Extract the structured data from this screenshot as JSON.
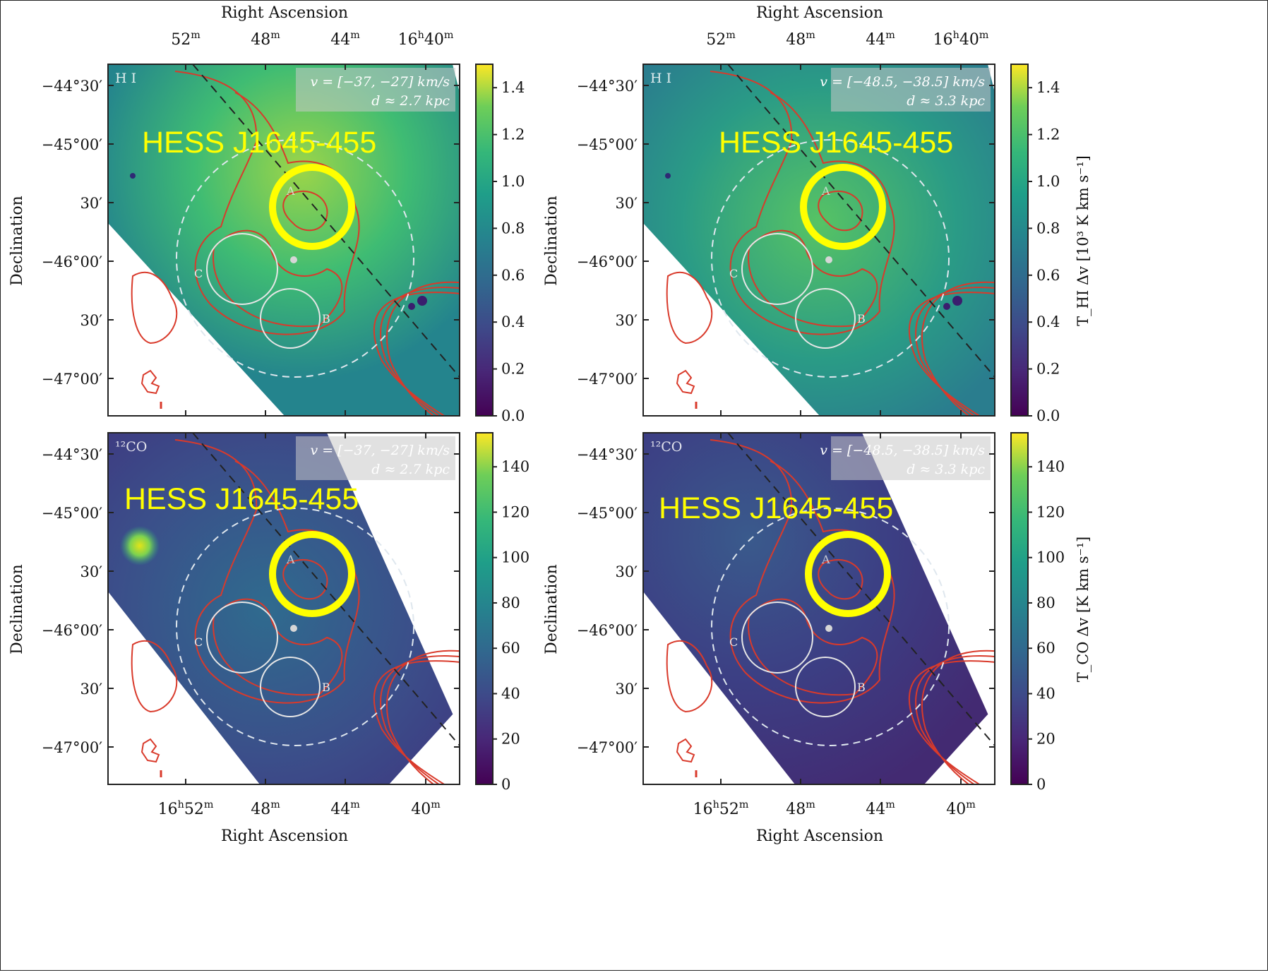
{
  "axes": {
    "ra_label": "Right Ascension",
    "dec_label": "Declination",
    "ra_ticks_top": [
      "52m",
      "48m",
      "44m",
      "16h40m"
    ],
    "ra_ticks_bottom": [
      "16h52m",
      "48m",
      "44m",
      "40m"
    ],
    "dec_ticks": [
      "−44°30′",
      "−45°00′",
      "30′",
      "−46°00′",
      "30′",
      "−47°00′"
    ]
  },
  "panels": [
    {
      "id": "hi-left",
      "tracer": "H I",
      "velocity": "v = [−37, −27] km/s",
      "distance": "d ≈ 2.7 kpc",
      "source_label": "HESS J1645-455"
    },
    {
      "id": "hi-right",
      "tracer": "H I",
      "velocity": "v = [−48.5, −38.5] km/s",
      "distance": "d ≈ 3.3 kpc",
      "source_label": "HESS J1645-455"
    },
    {
      "id": "co-left",
      "tracer": "¹²CO",
      "velocity": "v = [−37, −27] km/s",
      "distance": "d ≈ 2.7 kpc",
      "source_label": "HESS J1645-455"
    },
    {
      "id": "co-right",
      "tracer": "¹²CO",
      "velocity": "v = [−48.5, −38.5] km/s",
      "distance": "d ≈ 3.3 kpc",
      "source_label": "HESS J1645-455"
    }
  ],
  "region_labels": [
    "A",
    "B",
    "C"
  ],
  "colorbars": {
    "hi": {
      "ticks": [
        "1.4",
        "1.2",
        "1.0",
        "0.8",
        "0.6",
        "0.4",
        "0.2",
        "0.0"
      ],
      "label": "T_HI Δv [10³ K km s⁻¹]",
      "min": 0.0,
      "max": 1.5
    },
    "co": {
      "ticks": [
        "140",
        "120",
        "100",
        "80",
        "60",
        "40",
        "20",
        "0"
      ],
      "label": "T_CO Δv [K km s⁻¹]",
      "min": 0,
      "max": 155
    }
  },
  "colors": {
    "highlight": "#ffff00",
    "contour": "#d93a2b",
    "circle": "#e6e6e6",
    "viridis_low": "#440154",
    "viridis_mid": "#21918c",
    "viridis_high": "#fde725"
  }
}
